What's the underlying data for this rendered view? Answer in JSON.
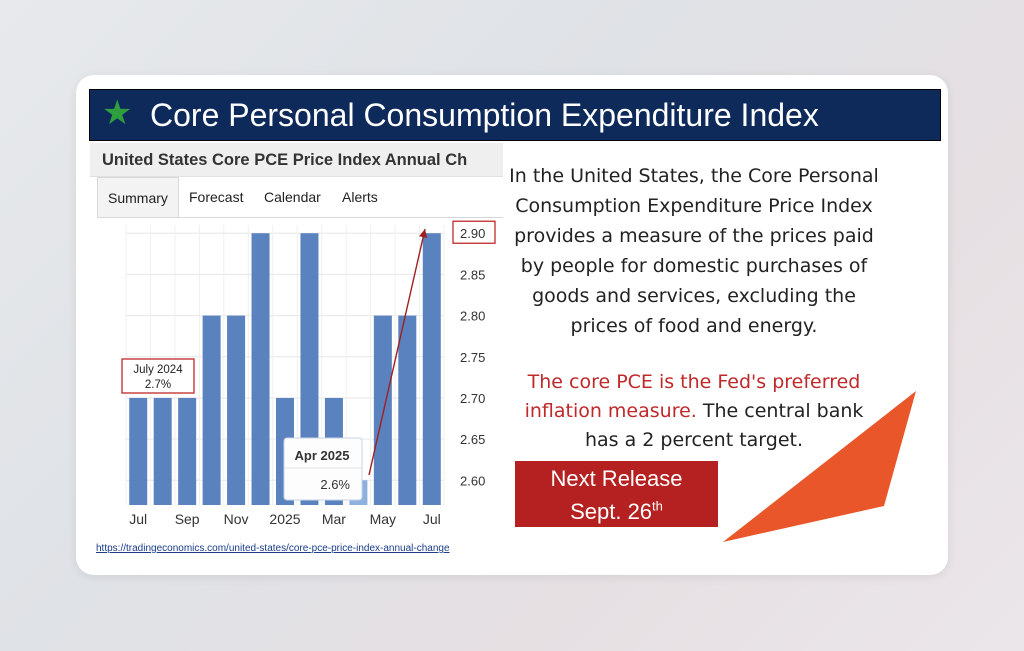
{
  "banner": {
    "title": "Core Personal Consumption Expenditure Index"
  },
  "panel": {
    "title": "United States Core PCE Price Index Annual Ch",
    "tabs": [
      "Summary",
      "Forecast",
      "Calendar",
      "Alerts"
    ],
    "link": "https://tradingeconomics.com/united-states/core-pce-price-index-annual-change"
  },
  "chart_data": {
    "type": "bar",
    "categories": [
      "Jul 2024",
      "Aug 2024",
      "Sep 2024",
      "Oct 2024",
      "Nov 2024",
      "Dec 2024",
      "Jan 2025",
      "Feb 2025",
      "Mar 2025",
      "Apr 2025",
      "May 2025",
      "Jun 2025",
      "Jul 2025"
    ],
    "values": [
      2.7,
      2.7,
      2.7,
      2.8,
      2.8,
      2.9,
      2.7,
      2.9,
      2.7,
      2.6,
      2.8,
      2.8,
      2.9
    ],
    "x_tick_labels": [
      {
        "label": "Jul",
        "index": 0
      },
      {
        "label": "Sep",
        "index": 2
      },
      {
        "label": "Nov",
        "index": 4
      },
      {
        "label": "2025",
        "index": 6
      },
      {
        "label": "Mar",
        "index": 8
      },
      {
        "label": "May",
        "index": 10
      },
      {
        "label": "Jul",
        "index": 12
      }
    ],
    "y_ticks": [
      2.6,
      2.65,
      2.7,
      2.75,
      2.8,
      2.85,
      2.9
    ],
    "y_tick_labels": [
      "2.60",
      "2.65",
      "2.70",
      "2.75",
      "2.80",
      "2.85",
      "2.90"
    ],
    "ylim": [
      2.57,
      2.91
    ],
    "bar_color": "#5a82be",
    "highlight_color": "#8eb0df",
    "grid": true,
    "annotations": {
      "first": {
        "line1": "July 2024",
        "line2": "2.7%"
      },
      "tooltip": {
        "title": "Apr 2025",
        "value": "2.6%"
      }
    }
  },
  "description": "In the United States, the Core Personal Consumption Expenditure Price Index provides a measure of the prices paid by people for domestic purchases of goods and services, excluding the prices of food and energy.",
  "note": {
    "red": "The core PCE is the Fed's preferred inflation measure.",
    "rest": " The central bank has a 2 percent target."
  },
  "release": {
    "line1": "Next Release",
    "line2": "Sept. 26",
    "sup": "th"
  },
  "colors": {
    "banner": "#0e2a5a",
    "release": "#b52020",
    "accent_triangle": "#e8562a",
    "star": "#2e9e3e"
  }
}
